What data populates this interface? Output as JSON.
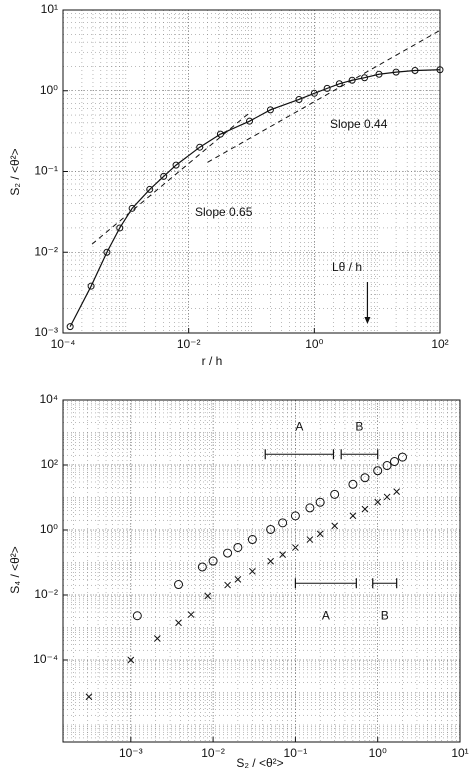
{
  "chart_data": [
    {
      "type": "line",
      "x_label": "r / h",
      "y_label": "S₂ / <θ²>",
      "x": [
        0.00013,
        0.00028,
        0.0005,
        0.0008,
        0.00126,
        0.0024,
        0.004,
        0.0063,
        0.015,
        0.032,
        0.093,
        0.2,
        0.57,
        1,
        1.6,
        2.5,
        4,
        6.3,
        10.7,
        20,
        40,
        100
      ],
      "values": [
        0.0012,
        0.0038,
        0.01,
        0.02,
        0.035,
        0.06,
        0.087,
        0.12,
        0.2,
        0.29,
        0.42,
        0.58,
        0.78,
        0.93,
        1.07,
        1.22,
        1.35,
        1.45,
        1.6,
        1.7,
        1.78,
        1.82
      ],
      "marker": "circle",
      "color": "#111111",
      "log_x": true,
      "log_y": true,
      "grid": true,
      "xlim": [
        0.0001,
        100
      ],
      "ylim": [
        0.001,
        10
      ],
      "xticks": [
        {
          "value": 0.0001,
          "label": "10⁻⁴"
        },
        {
          "value": 0.01,
          "label": "10⁻²"
        },
        {
          "value": 1,
          "label": "10⁰"
        },
        {
          "value": 100,
          "label": "10²"
        }
      ],
      "yticks": [
        {
          "value": 0.001,
          "label": "10⁻³"
        },
        {
          "value": 0.01,
          "label": "10⁻²"
        },
        {
          "value": 0.1,
          "label": "10⁻¹"
        },
        {
          "value": 1,
          "label": "10⁰"
        },
        {
          "value": 10,
          "label": "10¹"
        }
      ],
      "fit_lines": [
        {
          "x": [
            0.00029,
            0.1
          ],
          "values": [
            0.0126,
            0.56
          ]
        },
        {
          "x": [
            0.02,
            100
          ],
          "values": [
            0.13,
            5.6
          ]
        }
      ],
      "annotations": [
        {
          "text": "Slope 0.44"
        },
        {
          "text": "Slope 0.65"
        },
        {
          "text": "Lθ / h",
          "arrow_x": 7
        }
      ]
    },
    {
      "type": "scatter",
      "x_label": "S₂ / <θ²>",
      "y_label": "S₄ / <θ²>",
      "log_x": true,
      "log_y": true,
      "grid": true,
      "xlim": [
        0.00015,
        10
      ],
      "ylim": [
        3e-07,
        10000
      ],
      "xticks": [
        {
          "value": 0.001,
          "label": "10⁻³"
        },
        {
          "value": 0.01,
          "label": "10⁻²"
        },
        {
          "value": 0.1,
          "label": "10⁻¹"
        },
        {
          "value": 1,
          "label": "10⁰"
        },
        {
          "value": 10,
          "label": "10¹"
        }
      ],
      "yticks": [
        {
          "value": 0.0001,
          "label": "10⁻⁴"
        },
        {
          "value": 0.01,
          "label": "10⁻²"
        },
        {
          "value": 1,
          "label": "10⁰"
        },
        {
          "value": 100,
          "label": "10²"
        },
        {
          "value": 10000,
          "label": "10⁴"
        }
      ],
      "series": [
        {
          "marker": "circle",
          "color": "#111111",
          "x": [
            0.0012,
            0.0038,
            0.0074,
            0.01,
            0.015,
            0.02,
            0.03,
            0.05,
            0.07,
            0.1,
            0.15,
            0.2,
            0.3,
            0.5,
            0.7,
            1,
            1.3,
            1.6,
            2
          ],
          "values": [
            0.0023,
            0.021,
            0.073,
            0.111,
            0.195,
            0.29,
            0.51,
            1.04,
            1.66,
            2.72,
            4.79,
            7.13,
            12.5,
            25.5,
            40.7,
            66.8,
            96.4,
            128,
            175
          ]
        },
        {
          "marker": "x",
          "color": "#111111",
          "x": [
            0.00031,
            0.001,
            0.0021,
            0.0038,
            0.0054,
            0.0086,
            0.015,
            0.02,
            0.03,
            0.05,
            0.07,
            0.1,
            0.15,
            0.2,
            0.3,
            0.5,
            0.7,
            1,
            1.3,
            1.7
          ],
          "values": [
            7.4e-06,
            0.0001,
            0.00046,
            0.0014,
            0.0025,
            0.0093,
            0.0202,
            0.0303,
            0.0535,
            0.109,
            0.175,
            0.288,
            0.508,
            0.76,
            1.34,
            2.74,
            4.4,
            7.24,
            10.4,
            15.2
          ]
        }
      ],
      "ranges": [
        {
          "label": "A",
          "x": [
            0.043,
            0.29
          ],
          "y": 214
        },
        {
          "label": "B",
          "x": [
            0.36,
            1.0
          ],
          "y": 214
        },
        {
          "label": "A",
          "x": [
            0.1,
            0.55
          ],
          "y": 0.023
        },
        {
          "label": "B",
          "x": [
            0.87,
            1.7
          ],
          "y": 0.023
        }
      ]
    }
  ]
}
